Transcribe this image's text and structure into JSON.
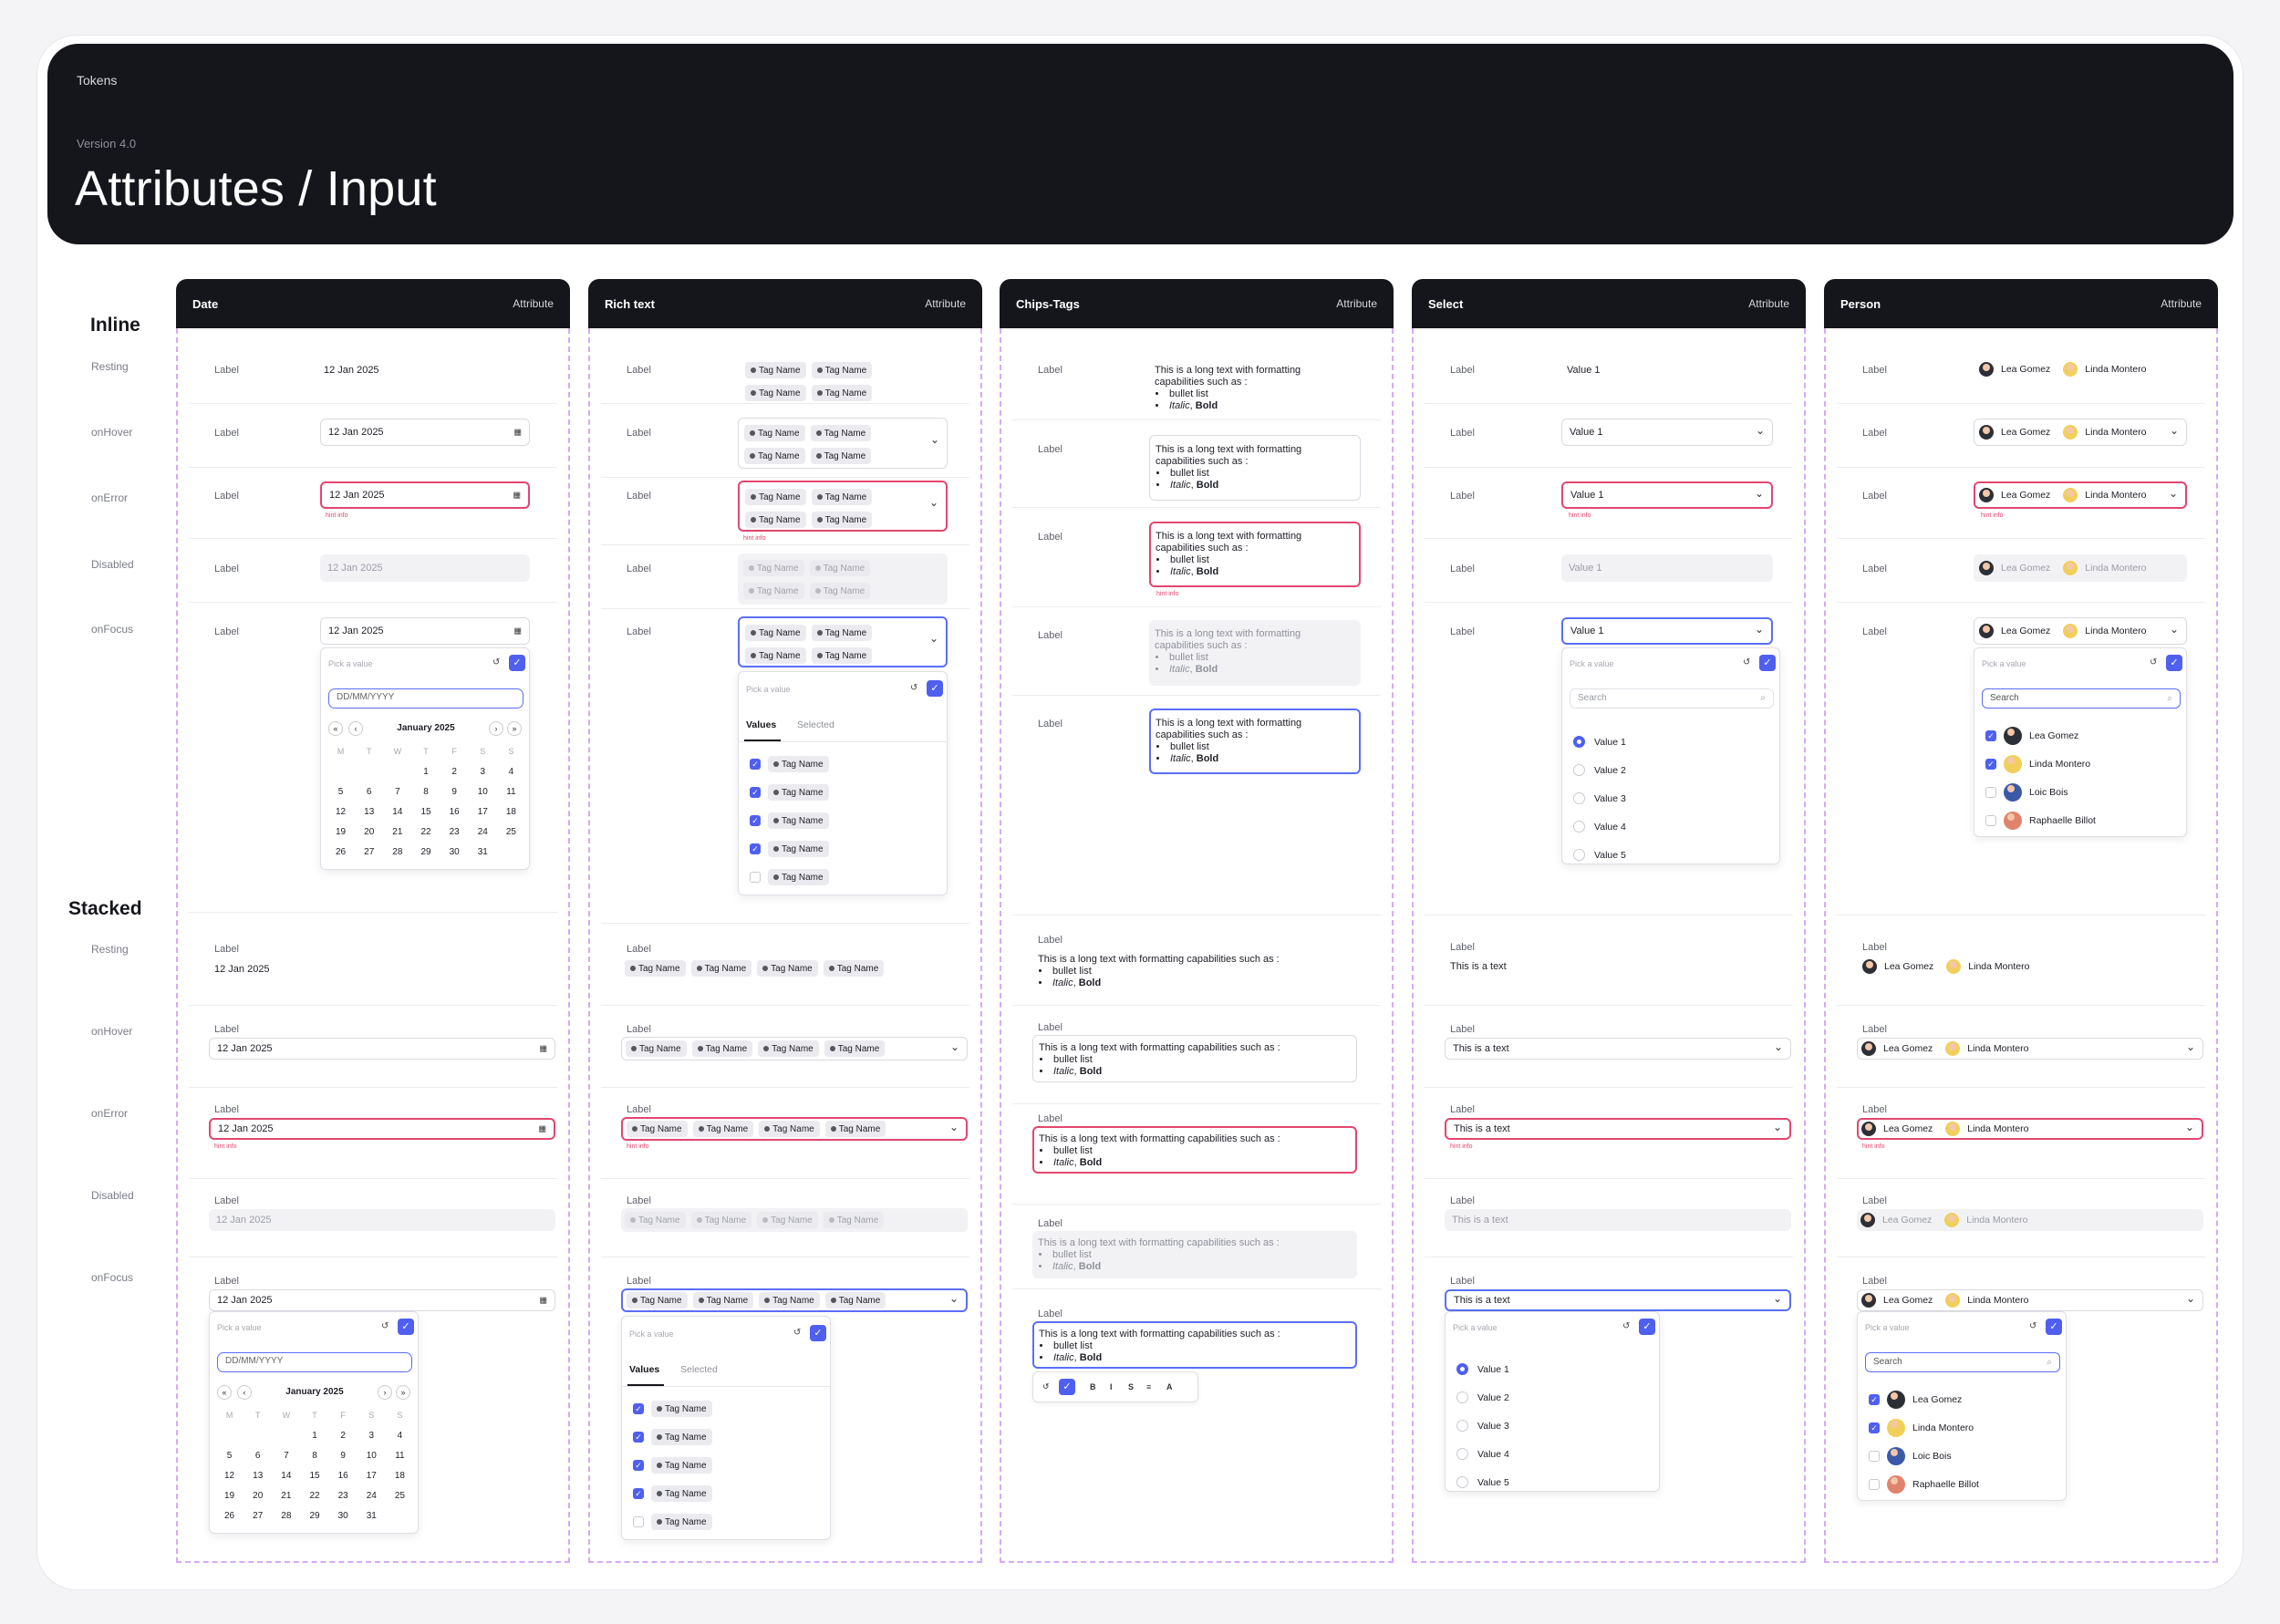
{
  "header": {
    "tokens_label": "Tokens",
    "version": "Version 4.0",
    "title": "Attributes / Input"
  },
  "sections": {
    "inline": "Inline",
    "stacked": "Stacked"
  },
  "states": [
    "Resting",
    "onHover",
    "onError",
    "Disabled",
    "onFocus"
  ],
  "common": {
    "label": "Label",
    "hint": "hint info",
    "pick_value": "Pick a value",
    "attribute": "Attribute",
    "undo_icon": "undo-icon",
    "confirm_icon": "check-icon",
    "chevron_icon": "chevron-down-icon",
    "calendar_icon": "calendar-icon",
    "search_icon": "search-icon"
  },
  "columns": {
    "date": {
      "title": "Date",
      "value": "12 Jan 2025",
      "picker": {
        "placeholder": "DD/MM/YYYY",
        "month": "January 2025",
        "nav": {
          "first": "«",
          "prev": "‹",
          "next": "›",
          "last": "»"
        },
        "weekdays": [
          "M",
          "T",
          "W",
          "T",
          "F",
          "S",
          "S"
        ],
        "weeks": [
          [
            "",
            "",
            "",
            "1",
            "2",
            "3",
            "4"
          ],
          [
            "5",
            "6",
            "7",
            "8",
            "9",
            "10",
            "11"
          ],
          [
            "12",
            "13",
            "14",
            "15",
            "16",
            "17",
            "18"
          ],
          [
            "19",
            "20",
            "21",
            "22",
            "23",
            "24",
            "25"
          ],
          [
            "26",
            "27",
            "28",
            "29",
            "30",
            "31",
            ""
          ]
        ]
      }
    },
    "rich_text": {
      "title": "Rich text",
      "tag": "Tag Name",
      "tabs": {
        "values": "Values",
        "selected": "Selected"
      },
      "checked": [
        true,
        true,
        true,
        true,
        false
      ]
    },
    "chips_tags": {
      "title": "Chips-Tags",
      "text_inline": "This is a long text with formatting capabilities such as :",
      "bullet": "bullet list",
      "italic": "Italic",
      "bold": "Bold",
      "toolbar": {
        "bold": "B",
        "italic": "I",
        "strike": "S",
        "list": "≡",
        "font": "A"
      }
    },
    "select": {
      "title": "Select",
      "value_inline": "Value 1",
      "value_stacked": "This is a text",
      "search": "Search",
      "options": [
        "Value 1",
        "Value 2",
        "Value 3",
        "Value 4",
        "Value 5"
      ],
      "selected_index": 0
    },
    "person": {
      "title": "Person",
      "selected": [
        "Lea Gomez",
        "Linda Montero"
      ],
      "search": "Search",
      "people": [
        "Lea Gomez",
        "Linda Montero",
        "Loic Bois",
        "Raphaelle Billot"
      ],
      "checked": [
        true,
        true,
        false,
        false
      ]
    }
  }
}
